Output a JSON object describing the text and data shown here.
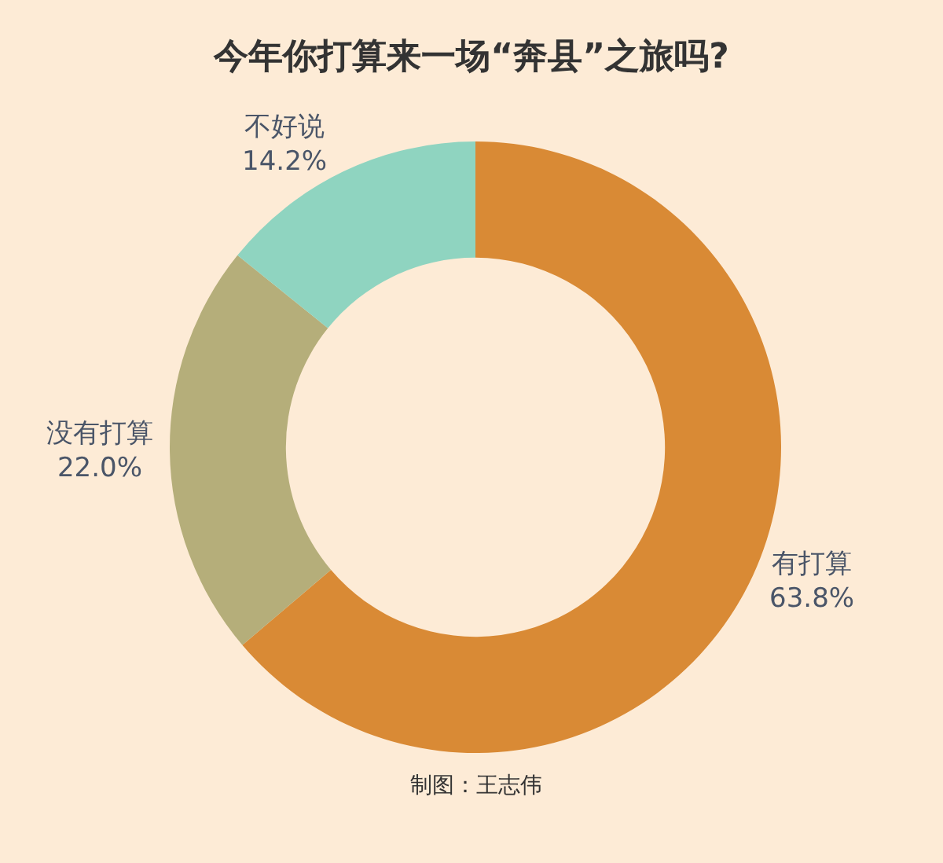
{
  "chart_data": {
    "type": "donut",
    "title": "今年你打算来一场“奔县”之旅吗?",
    "categories": [
      "有打算",
      "没有打算",
      "不好说"
    ],
    "values": [
      63.8,
      22.0,
      14.2
    ],
    "value_labels": [
      "63.8%",
      "22.0%",
      "14.2%"
    ],
    "colors": [
      "#d98a35",
      "#b5ae7a",
      "#8fd4c0"
    ],
    "legend": false,
    "annotations": [
      "制图：王志伟"
    ]
  }
}
